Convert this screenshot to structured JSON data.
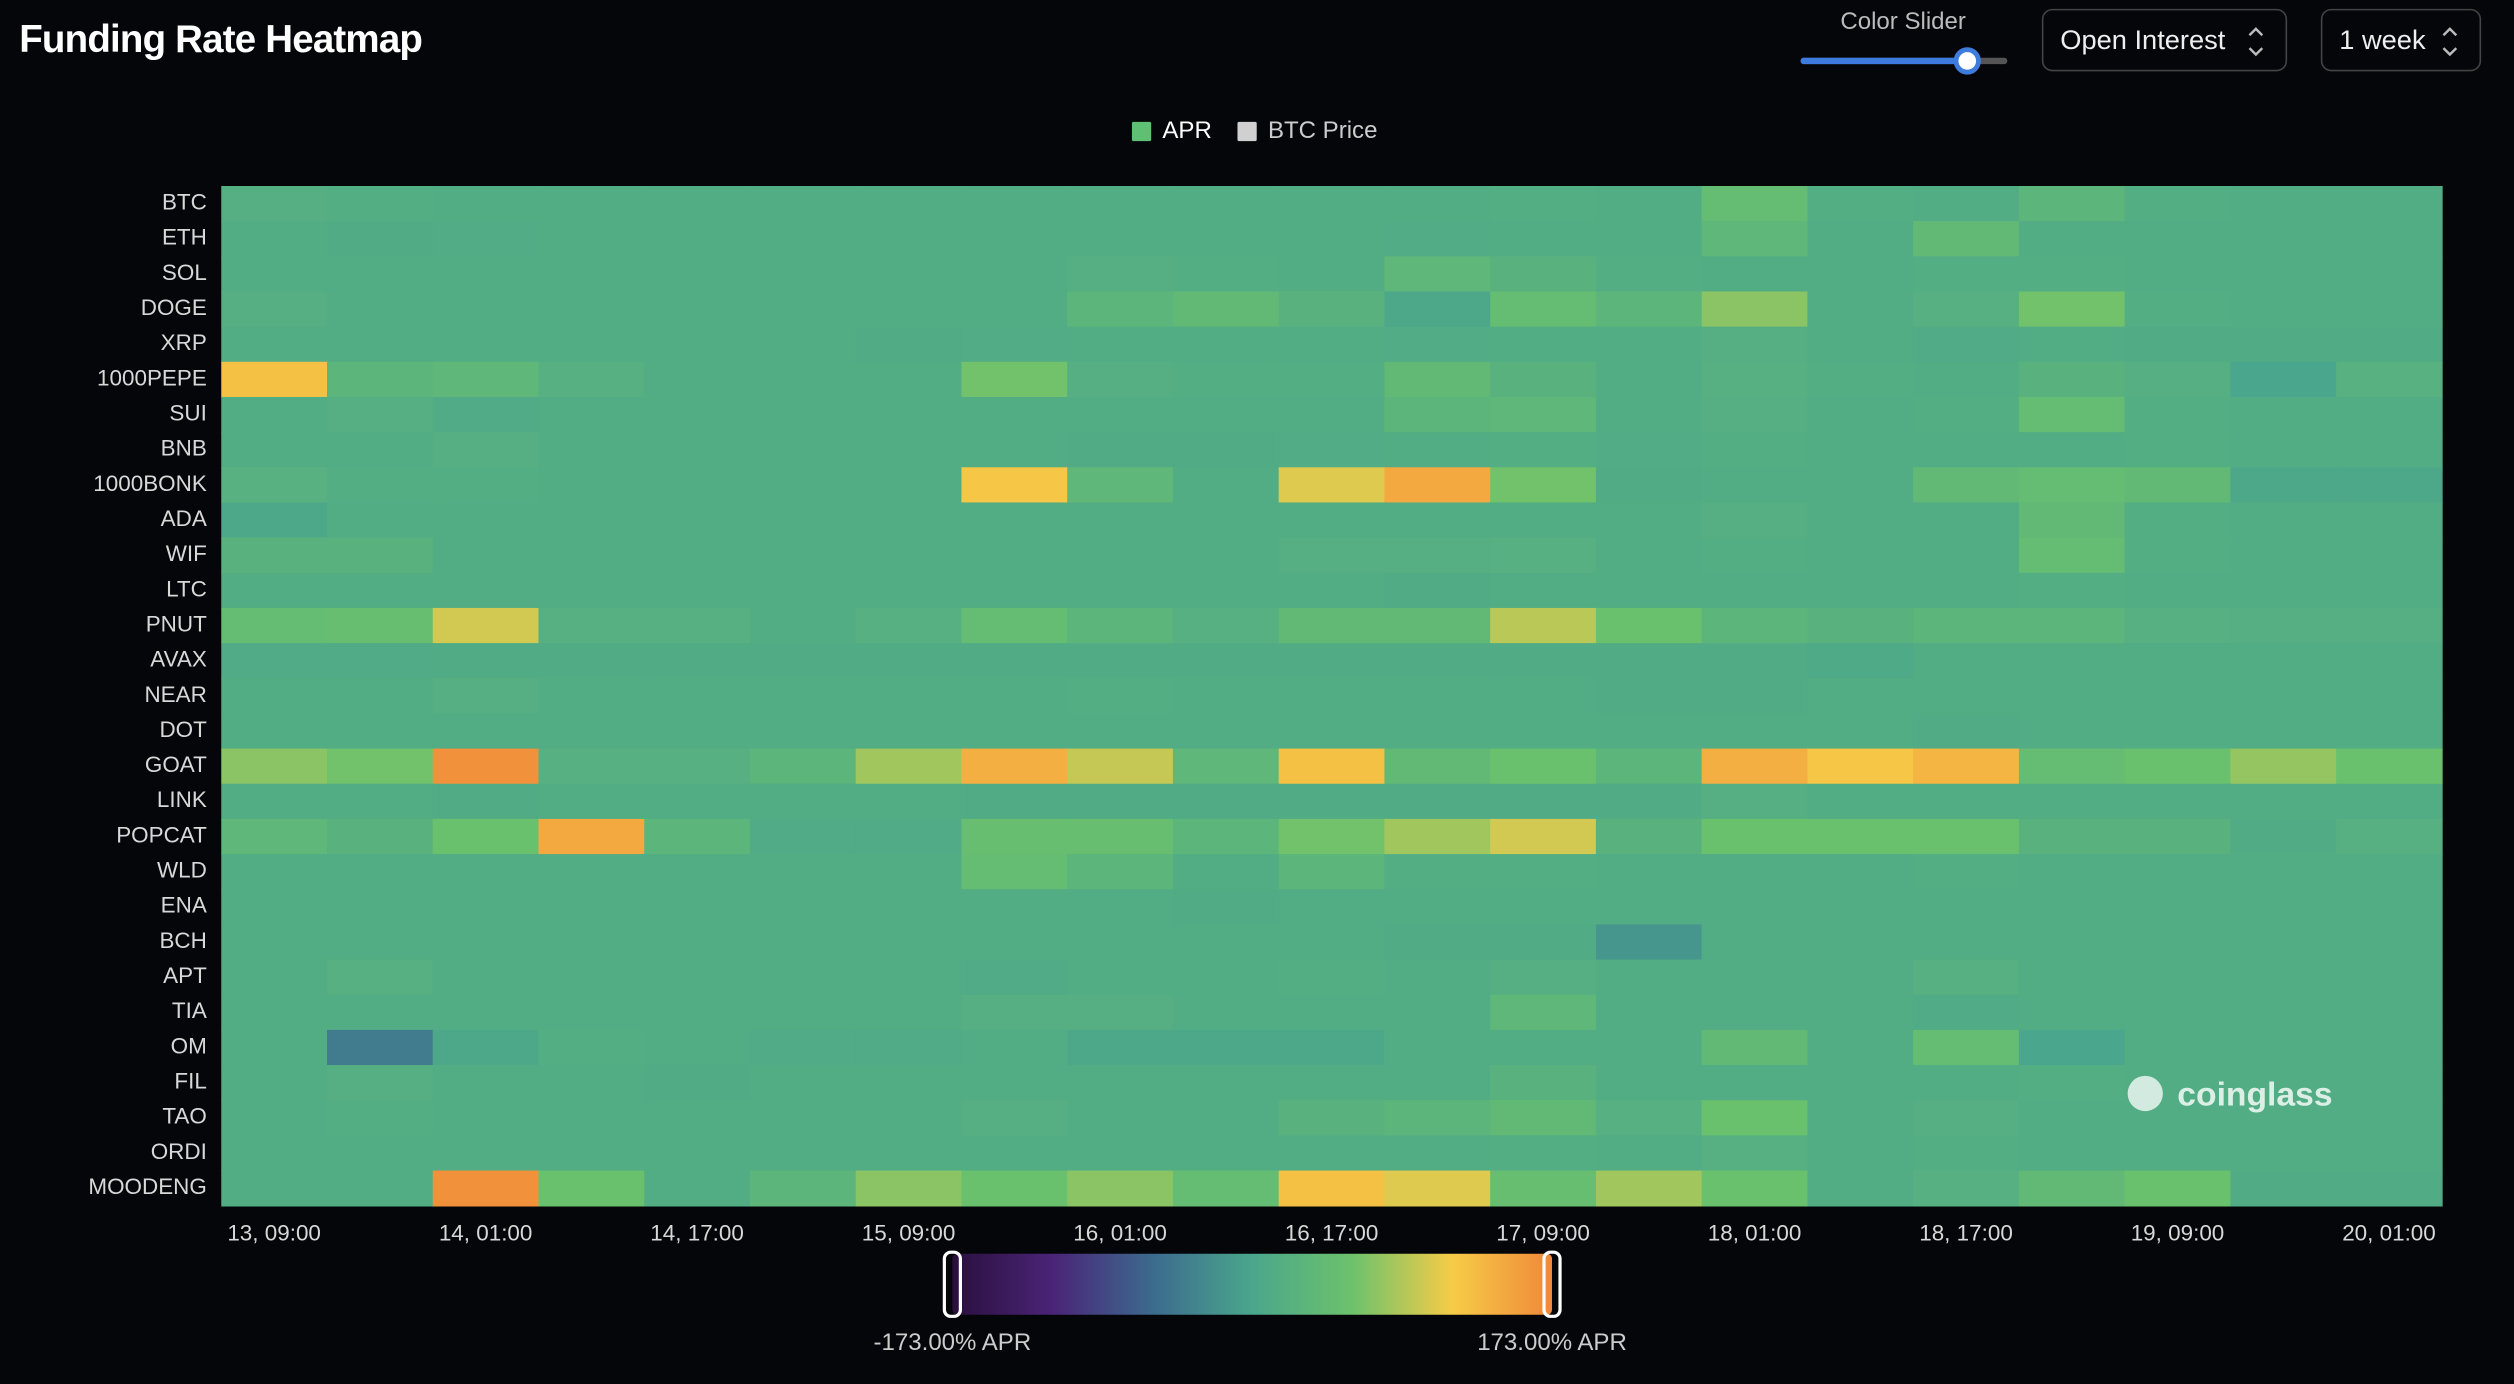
{
  "header": {
    "color_slider_label": "Color Slider",
    "metric": "Open Interest",
    "period": "1 week",
    "watermark": "coinglass"
  },
  "chart_data": {
    "type": "heatmap",
    "title": "Funding Rate Heatmap",
    "legend": [
      {
        "name": "APR",
        "color": "#5fbf72"
      },
      {
        "name": "BTC Price",
        "color": "#d0d0d0"
      }
    ],
    "x": [
      "13, 09:00",
      null,
      "14, 01:00",
      null,
      "14, 17:00",
      null,
      "15, 09:00",
      null,
      "16, 01:00",
      null,
      "16, 17:00",
      null,
      "17, 09:00",
      null,
      "18, 01:00",
      null,
      "18, 17:00",
      null,
      "19, 09:00",
      null,
      "20, 01:00"
    ],
    "y": [
      "BTC",
      "ETH",
      "SOL",
      "DOGE",
      "XRP",
      "1000PEPE",
      "SUI",
      "BNB",
      "1000BONK",
      "ADA",
      "WIF",
      "LTC",
      "PNUT",
      "AVAX",
      "NEAR",
      "DOT",
      "GOAT",
      "LINK",
      "POPCAT",
      "WLD",
      "ENA",
      "BCH",
      "APT",
      "TIA",
      "OM",
      "FIL",
      "TAO",
      "ORDI",
      "MOODENG"
    ],
    "values": [
      [
        18,
        16,
        15,
        14,
        14,
        15,
        15,
        15,
        15,
        14,
        15,
        15,
        16,
        14,
        45,
        16,
        15,
        30,
        16,
        14,
        15
      ],
      [
        14,
        12,
        13,
        14,
        14,
        14,
        14,
        15,
        14,
        14,
        14,
        13,
        14,
        14,
        35,
        15,
        40,
        15,
        14,
        14,
        14
      ],
      [
        14,
        14,
        14,
        14,
        14,
        14,
        14,
        15,
        18,
        16,
        15,
        35,
        25,
        16,
        15,
        15,
        16,
        16,
        15,
        14,
        14
      ],
      [
        18,
        15,
        14,
        14,
        14,
        14,
        14,
        15,
        30,
        40,
        25,
        5,
        45,
        30,
        70,
        15,
        20,
        60,
        16,
        15,
        14
      ],
      [
        15,
        14,
        14,
        14,
        14,
        14,
        12,
        13,
        14,
        14,
        14,
        13,
        14,
        14,
        18,
        14,
        10,
        14,
        12,
        12,
        12
      ],
      [
        125,
        30,
        35,
        20,
        15,
        15,
        14,
        60,
        18,
        16,
        16,
        40,
        25,
        15,
        20,
        16,
        14,
        25,
        18,
        0,
        22
      ],
      [
        14,
        18,
        10,
        14,
        14,
        14,
        14,
        14,
        14,
        14,
        14,
        30,
        35,
        14,
        18,
        14,
        16,
        45,
        16,
        14,
        14
      ],
      [
        14,
        14,
        18,
        15,
        14,
        14,
        14,
        14,
        12,
        12,
        13,
        14,
        16,
        13,
        16,
        14,
        14,
        15,
        16,
        15,
        14
      ],
      [
        22,
        16,
        16,
        14,
        14,
        14,
        14,
        120,
        35,
        14,
        105,
        145,
        60,
        12,
        14,
        14,
        40,
        45,
        40,
        5,
        5
      ],
      [
        5,
        14,
        14,
        14,
        14,
        14,
        14,
        14,
        14,
        14,
        14,
        14,
        14,
        14,
        18,
        14,
        14,
        40,
        16,
        14,
        14
      ],
      [
        25,
        25,
        14,
        14,
        14,
        14,
        14,
        14,
        14,
        14,
        18,
        18,
        20,
        14,
        16,
        14,
        14,
        45,
        16,
        14,
        14
      ],
      [
        14,
        14,
        14,
        14,
        14,
        14,
        14,
        14,
        14,
        14,
        14,
        12,
        14,
        14,
        14,
        14,
        14,
        16,
        14,
        14,
        14
      ],
      [
        45,
        50,
        100,
        20,
        20,
        14,
        20,
        45,
        30,
        20,
        40,
        40,
        90,
        55,
        30,
        25,
        30,
        30,
        20,
        18,
        18
      ],
      [
        10,
        10,
        12,
        12,
        12,
        12,
        12,
        12,
        12,
        12,
        12,
        12,
        12,
        12,
        12,
        8,
        14,
        14,
        14,
        14,
        14
      ],
      [
        14,
        14,
        18,
        14,
        14,
        14,
        14,
        14,
        16,
        14,
        14,
        14,
        14,
        12,
        12,
        14,
        14,
        14,
        14,
        14,
        14
      ],
      [
        14,
        14,
        14,
        14,
        14,
        14,
        14,
        14,
        14,
        14,
        14,
        14,
        14,
        14,
        14,
        14,
        12,
        14,
        14,
        14,
        14
      ],
      [
        70,
        60,
        165,
        20,
        20,
        30,
        80,
        140,
        95,
        35,
        125,
        40,
        55,
        30,
        140,
        120,
        135,
        45,
        55,
        75,
        55
      ],
      [
        14,
        14,
        12,
        14,
        14,
        14,
        14,
        12,
        12,
        12,
        12,
        12,
        12,
        12,
        18,
        14,
        14,
        14,
        14,
        14,
        14
      ],
      [
        35,
        25,
        55,
        145,
        30,
        10,
        10,
        50,
        50,
        30,
        60,
        80,
        100,
        25,
        55,
        55,
        55,
        25,
        25,
        12,
        20
      ],
      [
        14,
        14,
        14,
        14,
        14,
        14,
        14,
        45,
        30,
        14,
        30,
        16,
        16,
        14,
        14,
        14,
        16,
        14,
        14,
        14,
        14
      ],
      [
        14,
        14,
        14,
        14,
        14,
        14,
        14,
        14,
        14,
        12,
        14,
        14,
        14,
        14,
        14,
        14,
        14,
        14,
        14,
        14,
        14
      ],
      [
        14,
        14,
        14,
        14,
        14,
        14,
        14,
        14,
        14,
        14,
        14,
        12,
        12,
        -15,
        14,
        14,
        14,
        14,
        14,
        14,
        14
      ],
      [
        14,
        20,
        14,
        14,
        14,
        14,
        14,
        10,
        14,
        14,
        16,
        14,
        18,
        14,
        14,
        14,
        20,
        14,
        14,
        14,
        14
      ],
      [
        14,
        14,
        14,
        14,
        14,
        14,
        14,
        18,
        18,
        14,
        14,
        14,
        35,
        14,
        14,
        14,
        10,
        14,
        14,
        14,
        14
      ],
      [
        14,
        -40,
        5,
        16,
        14,
        10,
        10,
        14,
        5,
        5,
        5,
        14,
        14,
        15,
        40,
        14,
        45,
        0,
        14,
        14,
        14
      ],
      [
        14,
        18,
        14,
        14,
        12,
        14,
        14,
        14,
        14,
        14,
        14,
        14,
        25,
        14,
        14,
        14,
        14,
        16,
        14,
        14,
        14
      ],
      [
        14,
        16,
        14,
        14,
        14,
        14,
        14,
        18,
        14,
        14,
        25,
        30,
        40,
        20,
        55,
        14,
        18,
        14,
        14,
        14,
        14
      ],
      [
        14,
        14,
        14,
        14,
        14,
        14,
        14,
        14,
        14,
        14,
        14,
        14,
        16,
        14,
        20,
        14,
        16,
        14,
        14,
        14,
        14
      ],
      [
        14,
        14,
        165,
        55,
        15,
        30,
        70,
        55,
        70,
        45,
        125,
        105,
        50,
        80,
        55,
        15,
        20,
        40,
        55,
        12,
        12
      ]
    ],
    "zlim": [
      -173,
      173
    ],
    "colorbar_ticks": [
      {
        "value": -173,
        "label": "-173.00% APR"
      },
      {
        "value": 173,
        "label": "173.00% APR"
      }
    ],
    "colorscale": [
      "#2a0f3d",
      "#4a2477",
      "#3c6a8e",
      "#4aa68c",
      "#6cc26c",
      "#f6cc47",
      "#f0883a"
    ]
  }
}
